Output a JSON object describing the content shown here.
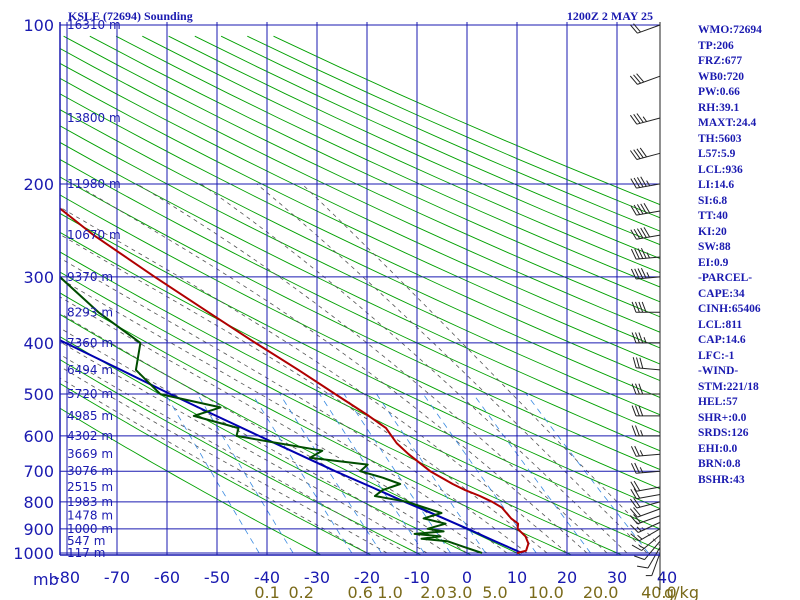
{
  "header": {
    "station": "KSLE (72694) Sounding",
    "valid_time": "1200Z  2 MAY 25"
  },
  "params": [
    "WMO:72694",
    "TP:206",
    "FRZ:677",
    "WB0:720",
    "PW:0.66",
    "RH:39.1",
    "MAXT:24.4",
    "TH:5603",
    "L57:5.9",
    "LCL:936",
    "LI:14.6",
    "SI:6.8",
    "TT:40",
    "KI:20",
    "SW:88",
    "EI:0.9",
    "-PARCEL-",
    "CAPE:34",
    "CINH:65406",
    "LCL:811",
    "CAP:14.6",
    "LFC:-1",
    "-WIND-",
    "STM:221/18",
    "HEL:57",
    "SHR+:0.0",
    "SRDS:126",
    "EHI:0.0",
    "BRN:0.8",
    "BSHR:43"
  ],
  "colors": {
    "grid": "#1a1ab0",
    "dry_adiabat": "#00a000",
    "moist_adiabat": "#555555",
    "mixing_ratio": "#3a8ae0",
    "temperature": "#b00000",
    "dewpoint": "#004d00",
    "parcel": "#0000b0",
    "label": "#1a1ab0",
    "mixing_label": "#7a6a1a",
    "wind_barb": "#222222"
  },
  "chart_data": {
    "type": "line",
    "title": "",
    "xlabel": "",
    "ylabel": "mb",
    "y_scale": "log-pressure",
    "pressure_levels": [
      100,
      200,
      300,
      400,
      500,
      600,
      700,
      800,
      900,
      1000
    ],
    "pressure_tick_labels": [
      "100",
      "200",
      "300",
      "400",
      "500",
      "600",
      "700",
      "800",
      "900",
      "1000"
    ],
    "pressure_axis_label": "mb",
    "temperature_ticks": [
      -80,
      -70,
      -60,
      -50,
      -40,
      -30,
      -20,
      -10,
      0,
      10,
      20,
      30,
      40
    ],
    "temperature_tick_labels": [
      "-80",
      "-70",
      "-60",
      "-50",
      "-40",
      "-30",
      "-20",
      "-10",
      "0",
      "10",
      "20",
      "30",
      "40"
    ],
    "mixing_ratio_ticks": [
      0.1,
      0.2,
      0.6,
      1.0,
      2.0,
      3.0,
      5.0,
      10.0,
      20.0,
      40.0
    ],
    "mixing_ratio_labels": [
      "0.1",
      "0.2",
      "0.6",
      "1.0",
      "2.0",
      "3.0",
      "5.0",
      "10.0",
      "20.0",
      "40.0"
    ],
    "mixing_ratio_unit": "g/kg",
    "height_labels": [
      {
        "p": 100,
        "text": "16310 m"
      },
      {
        "p": 150,
        "text": "13800 m"
      },
      {
        "p": 200,
        "text": "11980 m"
      },
      {
        "p": 250,
        "text": "10670 m"
      },
      {
        "p": 300,
        "text": "9370 m"
      },
      {
        "p": 350,
        "text": "8293 m"
      },
      {
        "p": 400,
        "text": "7360 m"
      },
      {
        "p": 450,
        "text": "6494 m"
      },
      {
        "p": 500,
        "text": "5720 m"
      },
      {
        "p": 550,
        "text": "4985 m"
      },
      {
        "p": 600,
        "text": "4302 m"
      },
      {
        "p": 650,
        "text": "3669 m"
      },
      {
        "p": 700,
        "text": "3076 m"
      },
      {
        "p": 750,
        "text": "2515 m"
      },
      {
        "p": 800,
        "text": "1983 m"
      },
      {
        "p": 850,
        "text": "1478 m"
      },
      {
        "p": 900,
        "text": "1000 m"
      },
      {
        "p": 950,
        "text": "547 m"
      },
      {
        "p": 1000,
        "text": "117 m"
      }
    ],
    "series": [
      {
        "name": "Temperature",
        "points": [
          [
            1000,
            10
          ],
          [
            990,
            12
          ],
          [
            960,
            13
          ],
          [
            930,
            13
          ],
          [
            900,
            12
          ],
          [
            880,
            12.5
          ],
          [
            860,
            11.5
          ],
          [
            840,
            11
          ],
          [
            820,
            10.5
          ],
          [
            800,
            9
          ],
          [
            780,
            7
          ],
          [
            760,
            4.5
          ],
          [
            740,
            2.5
          ],
          [
            700,
            -1
          ],
          [
            650,
            -4
          ],
          [
            620,
            -5.5
          ],
          [
            600,
            -6
          ],
          [
            580,
            -6.5
          ],
          [
            550,
            -9
          ],
          [
            500,
            -14
          ],
          [
            450,
            -19.5
          ],
          [
            400,
            -26
          ],
          [
            350,
            -33
          ],
          [
            300,
            -41
          ],
          [
            250,
            -50
          ],
          [
            210,
            -57
          ],
          [
            200,
            -59.5
          ],
          [
            160,
            -60
          ],
          [
            150,
            -60.5
          ],
          [
            100,
            -64
          ]
        ]
      },
      {
        "name": "Dewpoint",
        "points": [
          [
            1000,
            3
          ],
          [
            975,
            0
          ],
          [
            950,
            -3
          ],
          [
            940,
            -8
          ],
          [
            930,
            -4
          ],
          [
            920,
            -9
          ],
          [
            910,
            -3
          ],
          [
            900,
            -6
          ],
          [
            880,
            -2
          ],
          [
            860,
            -6
          ],
          [
            840,
            -2
          ],
          [
            820,
            -5
          ],
          [
            800,
            -8
          ],
          [
            780,
            -14
          ],
          [
            760,
            -12
          ],
          [
            740,
            -8
          ],
          [
            720,
            -11
          ],
          [
            700,
            -15
          ],
          [
            680,
            -13
          ],
          [
            660,
            -24
          ],
          [
            640,
            -21
          ],
          [
            620,
            -29
          ],
          [
            600,
            -37
          ],
          [
            580,
            -36
          ],
          [
            550,
            -44
          ],
          [
            530,
            -38
          ],
          [
            500,
            -49
          ],
          [
            450,
            -52
          ],
          [
            400,
            -49
          ],
          [
            350,
            -55
          ],
          [
            300,
            -60
          ],
          [
            250,
            -62
          ],
          [
            200,
            -68
          ],
          [
            150,
            -75
          ],
          [
            100,
            -82
          ]
        ]
      },
      {
        "name": "Parcel",
        "points": [
          [
            1000,
            11
          ],
          [
            950,
            6.5
          ],
          [
            900,
            2
          ],
          [
            850,
            -3
          ],
          [
            800,
            -8.5
          ],
          [
            750,
            -14
          ],
          [
            700,
            -20
          ],
          [
            650,
            -26
          ],
          [
            600,
            -32.5
          ],
          [
            550,
            -39.5
          ],
          [
            500,
            -47
          ],
          [
            450,
            -55
          ],
          [
            400,
            -64
          ],
          [
            350,
            -74
          ],
          [
            300,
            -85
          ],
          [
            250,
            -98
          ],
          [
            200,
            -112
          ]
        ]
      }
    ],
    "wind_barbs": [
      {
        "p": 1000,
        "dir": 200,
        "spd": 5
      },
      {
        "p": 975,
        "dir": 210,
        "spd": 10
      },
      {
        "p": 950,
        "dir": 220,
        "spd": 10
      },
      {
        "p": 925,
        "dir": 230,
        "spd": 15
      },
      {
        "p": 900,
        "dir": 240,
        "spd": 15
      },
      {
        "p": 875,
        "dir": 245,
        "spd": 15
      },
      {
        "p": 850,
        "dir": 250,
        "spd": 20
      },
      {
        "p": 825,
        "dir": 250,
        "spd": 20
      },
      {
        "p": 800,
        "dir": 255,
        "spd": 20
      },
      {
        "p": 775,
        "dir": 260,
        "spd": 20
      },
      {
        "p": 750,
        "dir": 260,
        "spd": 20
      },
      {
        "p": 700,
        "dir": 265,
        "spd": 25
      },
      {
        "p": 650,
        "dir": 265,
        "spd": 25
      },
      {
        "p": 600,
        "dir": 270,
        "spd": 25
      },
      {
        "p": 550,
        "dir": 270,
        "spd": 30
      },
      {
        "p": 500,
        "dir": 270,
        "spd": 30
      },
      {
        "p": 450,
        "dir": 275,
        "spd": 30
      },
      {
        "p": 400,
        "dir": 270,
        "spd": 35
      },
      {
        "p": 350,
        "dir": 270,
        "spd": 40
      },
      {
        "p": 300,
        "dir": 265,
        "spd": 45
      },
      {
        "p": 275,
        "dir": 265,
        "spd": 45
      },
      {
        "p": 250,
        "dir": 260,
        "spd": 50
      },
      {
        "p": 225,
        "dir": 260,
        "spd": 50
      },
      {
        "p": 200,
        "dir": 260,
        "spd": 45
      },
      {
        "p": 175,
        "dir": 255,
        "spd": 40
      },
      {
        "p": 150,
        "dir": 255,
        "spd": 35
      },
      {
        "p": 125,
        "dir": 250,
        "spd": 30
      },
      {
        "p": 100,
        "dir": 250,
        "spd": 20
      }
    ]
  }
}
